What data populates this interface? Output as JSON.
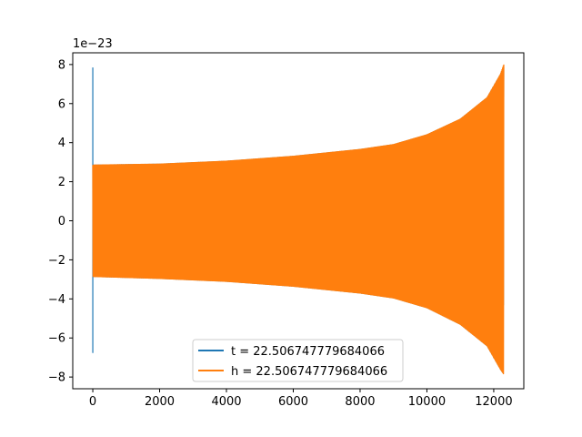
{
  "chart_data": {
    "type": "line",
    "title": "",
    "xlabel": "",
    "ylabel": "",
    "y_offset_label": "1e−23",
    "xlim": [
      -600,
      12900
    ],
    "ylim": [
      -8.6,
      8.6
    ],
    "x_ticks": [
      0,
      2000,
      4000,
      6000,
      8000,
      10000,
      12000
    ],
    "x_tick_labels": [
      "0",
      "2000",
      "4000",
      "6000",
      "8000",
      "10000",
      "12000"
    ],
    "y_ticks": [
      -8,
      -6,
      -4,
      -2,
      0,
      2,
      4,
      6,
      8
    ],
    "y_tick_labels": [
      "−8",
      "−6",
      "−4",
      "−2",
      "0",
      "2",
      "4",
      "6",
      "8"
    ],
    "grid": false,
    "legend_position": "lower-center",
    "series": [
      {
        "name": "t = 22.506747779684066",
        "color": "#1f77b4",
        "x_start": 0,
        "x_end": 12300,
        "spike_at_start": [
          7.85,
          -6.75
        ],
        "envelope": [
          [
            0,
            2.85
          ],
          [
            2000,
            2.9
          ],
          [
            4000,
            3.05
          ],
          [
            6000,
            3.3
          ],
          [
            8000,
            3.65
          ],
          [
            9000,
            3.9
          ],
          [
            10000,
            4.4
          ],
          [
            11000,
            5.2
          ],
          [
            11800,
            6.3
          ],
          [
            12200,
            7.5
          ],
          [
            12300,
            7.85
          ]
        ],
        "envelope_neg": [
          [
            0,
            -2.85
          ],
          [
            2000,
            -2.95
          ],
          [
            4000,
            -3.1
          ],
          [
            6000,
            -3.35
          ],
          [
            8000,
            -3.7
          ],
          [
            9000,
            -3.95
          ],
          [
            10000,
            -4.45
          ],
          [
            11000,
            -5.3
          ],
          [
            11800,
            -6.4
          ],
          [
            12200,
            -7.6
          ],
          [
            12300,
            -7.85
          ]
        ]
      },
      {
        "name": "h = 22.506747779684066",
        "color": "#ff7f0e",
        "x_start": 0,
        "x_end": 12300,
        "envelope": [
          [
            0,
            2.85
          ],
          [
            2000,
            2.9
          ],
          [
            4000,
            3.05
          ],
          [
            6000,
            3.3
          ],
          [
            8000,
            3.65
          ],
          [
            9000,
            3.9
          ],
          [
            10000,
            4.4
          ],
          [
            11000,
            5.2
          ],
          [
            11800,
            6.3
          ],
          [
            12200,
            7.5
          ],
          [
            12300,
            8.0
          ]
        ],
        "envelope_neg": [
          [
            0,
            -2.85
          ],
          [
            2000,
            -2.95
          ],
          [
            4000,
            -3.1
          ],
          [
            6000,
            -3.35
          ],
          [
            8000,
            -3.7
          ],
          [
            9000,
            -3.95
          ],
          [
            10000,
            -4.45
          ],
          [
            11000,
            -5.3
          ],
          [
            11800,
            -6.4
          ],
          [
            12200,
            -7.6
          ],
          [
            12300,
            -7.85
          ]
        ]
      }
    ]
  }
}
